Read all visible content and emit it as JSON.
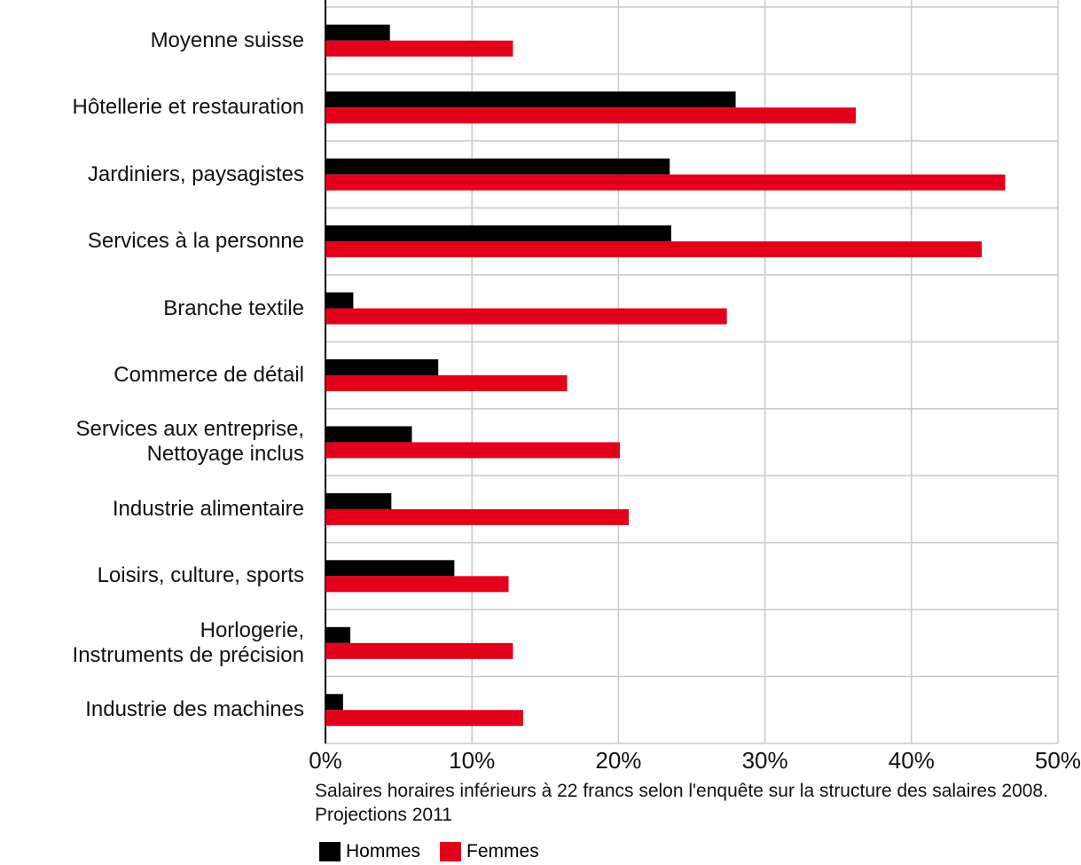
{
  "chart_data": {
    "type": "bar",
    "orientation": "horizontal",
    "categories": [
      "Moyenne suisse",
      "Hôtellerie et restauration",
      "Jardiniers, paysagistes",
      "Services à la personne",
      "Branche textile",
      "Commerce de détail",
      "Services aux entreprise,\nNettoyage inclus",
      "Industrie alimentaire",
      "Loisirs, culture, sports",
      "Horlogerie,\nInstruments de précision",
      "Industrie des machines"
    ],
    "series": [
      {
        "name": "Hommes",
        "color": "#000000",
        "values": [
          4.4,
          28.0,
          23.5,
          23.6,
          1.9,
          7.7,
          5.9,
          4.5,
          8.8,
          1.7,
          1.2
        ]
      },
      {
        "name": "Femmes",
        "color": "#e3001b",
        "values": [
          12.8,
          36.2,
          46.4,
          44.8,
          27.4,
          16.5,
          20.1,
          20.7,
          12.5,
          12.8,
          13.5
        ]
      }
    ],
    "xlim": [
      0,
      50
    ],
    "xticks": [
      {
        "value": 0,
        "label": "0%"
      },
      {
        "value": 10,
        "label": "10%"
      },
      {
        "value": 20,
        "label": "20%"
      },
      {
        "value": 30,
        "label": "30%"
      },
      {
        "value": 40,
        "label": "40%"
      },
      {
        "value": 50,
        "label": "50%"
      }
    ],
    "note": "Salaires horaires inférieurs à 22 francs selon l'enquête sur la structure des salaires 2008. Projections 2011",
    "grid": true,
    "legend": "bottom"
  }
}
